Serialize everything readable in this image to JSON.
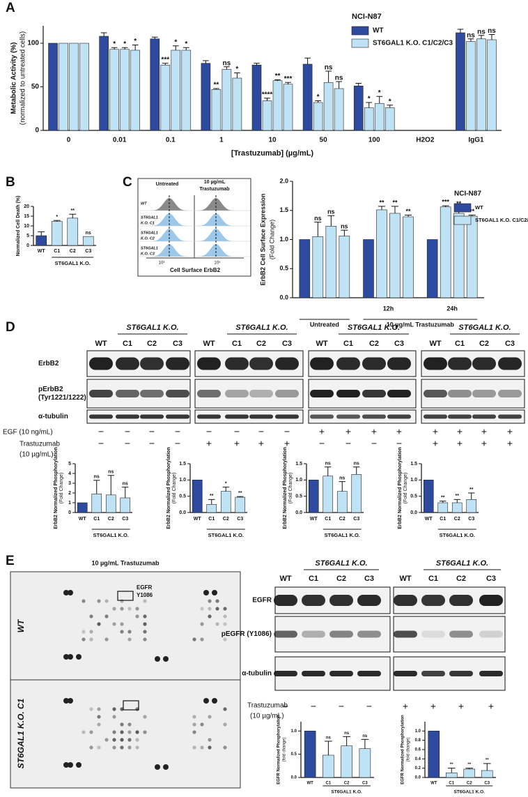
{
  "panel_labels": [
    "A",
    "B",
    "C",
    "D",
    "E"
  ],
  "chart_data": [
    {
      "type": "bar",
      "y_label": [
        "Metabolic Activity (%)",
        "(normalized to untreated cells)"
      ],
      "x_label": "[Trastuzumab] (µg/mL)",
      "legend_title": "NCI-N87",
      "legend": [
        {
          "name": "WT",
          "color": "#2e4a9e"
        },
        {
          "name": "ST6GAL1 K.O. C1/C2/C3",
          "color": "#bfe3f5"
        }
      ],
      "categories": [
        "0",
        "0.01",
        "0.1",
        "1",
        "10",
        "50",
        "100",
        "H2O2",
        "IgG1"
      ],
      "ylim": [
        0,
        120
      ],
      "yticks": [
        0,
        50,
        100
      ],
      "series": [
        {
          "color": "#2e4a9e",
          "values": [
            100,
            108,
            105,
            77,
            75,
            76,
            51,
            null,
            112
          ],
          "errors": [
            null,
            4,
            2,
            3,
            2,
            7,
            3,
            null,
            4
          ],
          "annotations": [
            null,
            null,
            null,
            null,
            null,
            null,
            null,
            null,
            null
          ]
        },
        {
          "color": "#bfe3f5",
          "values": [
            100,
            93,
            75,
            47,
            34,
            32,
            26,
            null,
            102
          ],
          "errors": [
            null,
            2,
            2,
            1,
            3,
            2,
            6,
            null,
            3
          ],
          "annotations": [
            null,
            "*",
            "***",
            "**",
            "****",
            "*",
            "*",
            null,
            "ns"
          ]
        },
        {
          "color": "#bfe3f5",
          "values": [
            100,
            93,
            92,
            70,
            57,
            55,
            31,
            null,
            105
          ],
          "errors": [
            null,
            2,
            5,
            3,
            1,
            13,
            8,
            null,
            4
          ],
          "annotations": [
            null,
            "*",
            "*",
            "ns",
            "**",
            "ns",
            "*",
            null,
            "ns"
          ]
        },
        {
          "color": "#bfe3f5",
          "values": [
            100,
            92,
            92,
            60,
            53,
            48,
            26,
            null,
            104
          ],
          "errors": [
            null,
            6,
            3,
            6,
            2,
            8,
            3,
            null,
            6
          ],
          "annotations": [
            null,
            "*",
            "*",
            "*",
            "***",
            "ns",
            "*",
            null,
            "ns"
          ]
        }
      ]
    },
    {
      "type": "bar",
      "y_label": [
        "Normalized Cell Death (%)"
      ],
      "categories": [
        "WT",
        "C1",
        "C2",
        "C3"
      ],
      "group_label": "ST6GAL1 K.O.",
      "ylim": [
        0,
        20
      ],
      "yticks": [
        0,
        5,
        10,
        15,
        20
      ],
      "series": [
        {
          "colors": [
            "#2e4a9e",
            "#bfe3f5",
            "#bfe3f5",
            "#bfe3f5"
          ],
          "values": [
            5,
            12.3,
            14,
            4.6
          ],
          "errors": [
            2,
            0.5,
            2,
            null
          ],
          "annotations": [
            null,
            "*",
            "**",
            "ns"
          ]
        }
      ]
    },
    {
      "type": "bar",
      "y_label": [
        "ErbB2 Cell Surface Expression",
        "(Fold Change)"
      ],
      "legend_title": "NCI-N87",
      "legend": [
        {
          "name": "WT",
          "color": "#2e4a9e"
        },
        {
          "name": "ST6GAL1 K.O. C1/C2/C3",
          "color": "#bfe3f5"
        }
      ],
      "categories": [
        null,
        "12h",
        "24h"
      ],
      "group_labels": [
        "Untreated",
        "10 µg/mL Trastuzumab"
      ],
      "ylim": [
        0,
        2
      ],
      "yticks": [
        {
          "value": 0,
          "label": "0.0"
        },
        {
          "value": 0.5,
          "label": "0.5"
        },
        {
          "value": 1,
          "label": "1.0"
        },
        {
          "value": 1.5,
          "label": "1.5"
        },
        {
          "value": 2,
          "label": "2.0"
        }
      ],
      "series": [
        {
          "color": "#2e4a9e",
          "values": [
            1,
            1,
            1
          ],
          "errors": [
            null,
            null,
            null
          ],
          "annotations": [
            null,
            null,
            null
          ]
        },
        {
          "color": "#bfe3f5",
          "values": [
            1.05,
            1.51,
            1.56
          ],
          "errors": [
            0.25,
            0.06,
            0.02
          ],
          "annotations": [
            "ns",
            "**",
            "***"
          ]
        },
        {
          "color": "#bfe3f5",
          "values": [
            1.23,
            1.45,
            1.45
          ],
          "errors": [
            0.18,
            0.12,
            0.1
          ],
          "annotations": [
            "ns",
            "**",
            "**"
          ]
        },
        {
          "color": "#bfe3f5",
          "values": [
            1.06,
            1.39,
            1.4
          ],
          "errors": [
            0.1,
            0.03,
            0.02
          ],
          "annotations": [
            "ns",
            "**",
            "**"
          ]
        }
      ]
    },
    {
      "type": "bar",
      "y_label": [
        "ErbB2 Normalized Phosphorylation",
        "(Fold Change)"
      ],
      "categories": [
        "WT",
        "C1",
        "C2",
        "C3"
      ],
      "group_label": "ST6GAL1 K.O.",
      "ylim": [
        0,
        5
      ],
      "yticks": [
        0,
        1,
        2,
        3,
        4,
        5
      ],
      "series": [
        {
          "colors": [
            "#2e4a9e",
            "#bfe3f5",
            "#bfe3f5",
            "#bfe3f5"
          ],
          "values": [
            1,
            1.9,
            1.8,
            1.5
          ],
          "errors": [
            null,
            1.4,
            2,
            1.1
          ],
          "annotations": [
            null,
            "ns",
            "ns",
            "ns"
          ]
        }
      ]
    },
    {
      "type": "bar",
      "y_label": [
        "ErbB2 Normalized Phosphorylation",
        "(Fold Change)"
      ],
      "categories": [
        "WT",
        "C1",
        "C2",
        "C3"
      ],
      "group_label": "ST6GAL1 K.O.",
      "ylim": [
        0,
        1.5
      ],
      "yticks": [
        {
          "value": 0,
          "label": "0.0"
        },
        {
          "value": 0.5,
          "label": "0.5"
        },
        {
          "value": 1,
          "label": "1.0"
        },
        {
          "value": 1.5,
          "label": "1.5"
        }
      ],
      "series": [
        {
          "colors": [
            "#2e4a9e",
            "#bfe3f5",
            "#bfe3f5",
            "#bfe3f5"
          ],
          "values": [
            1,
            0.25,
            0.65,
            0.47
          ],
          "errors": [
            null,
            0.15,
            0.13,
            0.02
          ],
          "annotations": [
            null,
            "**",
            "*",
            "**"
          ]
        }
      ]
    },
    {
      "type": "bar",
      "y_label": [
        "ErbB2 Normalized Phosphorylation",
        "(Fold Change)"
      ],
      "categories": [
        "WT",
        "C1",
        "C2",
        "C3"
      ],
      "group_label": "ST6GAL1 K.O.",
      "ylim": [
        0,
        1.5
      ],
      "yticks": [
        {
          "value": 0,
          "label": "0.0"
        },
        {
          "value": 0.5,
          "label": "0.5"
        },
        {
          "value": 1,
          "label": "1.0"
        },
        {
          "value": 1.5,
          "label": "1.5"
        }
      ],
      "series": [
        {
          "colors": [
            "#2e4a9e",
            "#bfe3f5",
            "#bfe3f5",
            "#bfe3f5"
          ],
          "values": [
            1,
            1.12,
            0.65,
            1.17
          ],
          "errors": [
            null,
            0.28,
            0.3,
            0.23
          ],
          "annotations": [
            null,
            "ns",
            "ns",
            "ns"
          ]
        }
      ]
    },
    {
      "type": "bar",
      "y_label": [
        "ErbB2 Normalized Phosphorylation",
        "(Fold Change)"
      ],
      "categories": [
        "WT",
        "C1",
        "C2",
        "C3"
      ],
      "group_label": "ST6GAL1 K.O.",
      "ylim": [
        0,
        1.5
      ],
      "yticks": [
        {
          "value": 0,
          "label": "0.0"
        },
        {
          "value": 0.5,
          "label": "0.5"
        },
        {
          "value": 1,
          "label": "1.0"
        },
        {
          "value": 1.5,
          "label": "1.5"
        }
      ],
      "series": [
        {
          "colors": [
            "#2e4a9e",
            "#bfe3f5",
            "#bfe3f5",
            "#bfe3f5"
          ],
          "values": [
            1,
            0.3,
            0.3,
            0.4
          ],
          "errors": [
            null,
            0.05,
            0.1,
            0.2
          ],
          "annotations": [
            null,
            "**",
            "**",
            "**"
          ]
        }
      ]
    },
    {
      "type": "bar",
      "y_label": [
        "EGFR Normalized Phosphorylation",
        "(fold change)"
      ],
      "categories": [
        "WT",
        "C1",
        "C2",
        "C3"
      ],
      "group_label": "ST6GAL1 K.O.",
      "ylim": [
        0,
        1.2
      ],
      "yticks": [
        {
          "value": 0,
          "label": "0.0"
        },
        {
          "value": 0.5,
          "label": "0.5"
        },
        {
          "value": 1,
          "label": "1.0"
        }
      ],
      "series": [
        {
          "colors": [
            "#2e4a9e",
            "#bfe3f5",
            "#bfe3f5",
            "#bfe3f5"
          ],
          "values": [
            1,
            0.48,
            0.68,
            0.62
          ],
          "errors": [
            null,
            0.3,
            0.2,
            0.2
          ],
          "annotations": [
            null,
            "ns",
            "ns",
            "ns"
          ]
        }
      ]
    },
    {
      "type": "bar",
      "y_label": [
        "EGFR Normalized Phosphorylation",
        "(fold change)"
      ],
      "categories": [
        "WT",
        "C1",
        "C2",
        "C3"
      ],
      "group_label": "ST6GAL1 K.O.",
      "ylim": [
        0,
        1.2
      ],
      "yticks": [
        {
          "value": 0,
          "label": "0.0"
        },
        {
          "value": 0.2,
          "label": "0.2"
        },
        {
          "value": 0.4,
          "label": "0.4"
        },
        {
          "value": 0.6,
          "label": "0.6"
        },
        {
          "value": 0.8,
          "label": "0.8"
        },
        {
          "value": 1,
          "label": "1.0"
        }
      ],
      "series": [
        {
          "colors": [
            "#2e4a9e",
            "#bfe3f5",
            "#bfe3f5",
            "#bfe3f5"
          ],
          "values": [
            1,
            0.1,
            0.18,
            0.15
          ],
          "errors": [
            null,
            0.1,
            0.02,
            0.15
          ],
          "annotations": [
            null,
            "**",
            "**",
            "**"
          ]
        }
      ]
    }
  ],
  "flow": {
    "headers": [
      [
        "Untreated"
      ],
      [
        "10 µg/mL",
        "Trastuzumab"
      ]
    ],
    "rows": [
      [
        "WT"
      ],
      [
        "ST6GAL1",
        "K.O. C1"
      ],
      [
        "ST6GAL1",
        "K.O. C2"
      ],
      [
        "ST6GAL1",
        "K.O. C3"
      ]
    ],
    "x_tick_labels": [
      "10³",
      "10⁵"
    ],
    "x_label": "Cell Surface ErbB2"
  },
  "blots_d": {
    "group_header": "ST6GAL1 K.O.",
    "lanes": [
      "WT",
      "C1",
      "C2",
      "C3"
    ],
    "rows": [
      [
        "ErbB2"
      ],
      [
        "pErbB2",
        "(Tyr1221/1222)"
      ],
      [
        "α-tubulin"
      ]
    ],
    "treatments": [
      {
        "label": [
          "EGF (10 ng/mL)"
        ],
        "signs": [
          "−",
          "−",
          "−",
          "−",
          "−",
          "−",
          "−",
          "−",
          "+",
          "+",
          "+",
          "+",
          "+",
          "+",
          "+",
          "+"
        ]
      },
      {
        "label": [
          "Trastuzumab",
          "(10 µg/mL)"
        ],
        "signs": [
          "−",
          "−",
          "−",
          "−",
          "+",
          "+",
          "+",
          "+",
          "−",
          "−",
          "−",
          "−",
          "+",
          "+",
          "+",
          "+"
        ]
      }
    ]
  },
  "array_e": {
    "title": "10 µg/mL Trastuzumab",
    "rows": [
      "WT",
      "ST6GAL1 K.O. C1"
    ],
    "callout": [
      "EGFR",
      "Y1086"
    ]
  },
  "blots_e": {
    "group_header": "ST6GAL1 K.O.",
    "lanes": [
      "WT",
      "C1",
      "C2",
      "C3"
    ],
    "rows": [
      "EGFR",
      "pEGFR (Y1086)",
      "α-tubulin"
    ],
    "treatment": {
      "label": [
        "Trastuzumab",
        "(10 µg/mL)"
      ],
      "signs": [
        "−",
        "−",
        "−",
        "−",
        "+",
        "+",
        "+",
        "+"
      ]
    }
  }
}
